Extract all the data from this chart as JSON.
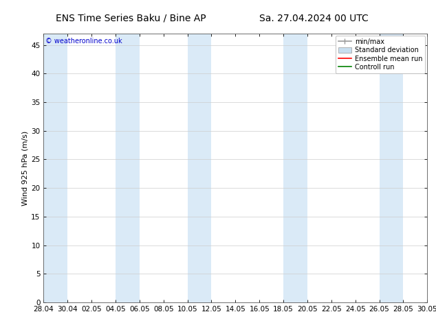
{
  "title_left": "ENS Time Series Baku / Bine AP",
  "title_right": "Sa. 27.04.2024 00 UTC",
  "ylabel": "Wind 925 hPa (m/s)",
  "watermark": "© weatheronline.co.uk",
  "ylim": [
    0,
    47
  ],
  "yticks": [
    0,
    5,
    10,
    15,
    20,
    25,
    30,
    35,
    40,
    45
  ],
  "xtick_labels": [
    "28.04",
    "30.04",
    "02.05",
    "04.05",
    "06.05",
    "08.05",
    "10.05",
    "12.05",
    "14.05",
    "16.05",
    "18.05",
    "20.05",
    "22.05",
    "24.05",
    "26.05",
    "28.05",
    "30.05"
  ],
  "background_color": "#ffffff",
  "plot_bg_color": "#ffffff",
  "shaded_band_color": "#daeaf7",
  "minmax_color": "#999999",
  "stddev_color": "#c8dff0",
  "ensemble_mean_color": "#ff0000",
  "control_run_color": "#008000",
  "legend_labels": [
    "min/max",
    "Standard deviation",
    "Ensemble mean run",
    "Controll run"
  ],
  "shaded_intervals": [
    [
      0,
      2
    ],
    [
      6,
      8
    ],
    [
      12,
      14
    ],
    [
      20,
      22
    ],
    [
      28,
      30
    ]
  ],
  "title_fontsize": 10,
  "ylabel_fontsize": 8,
  "tick_fontsize": 7.5,
  "watermark_fontsize": 7,
  "legend_fontsize": 7
}
